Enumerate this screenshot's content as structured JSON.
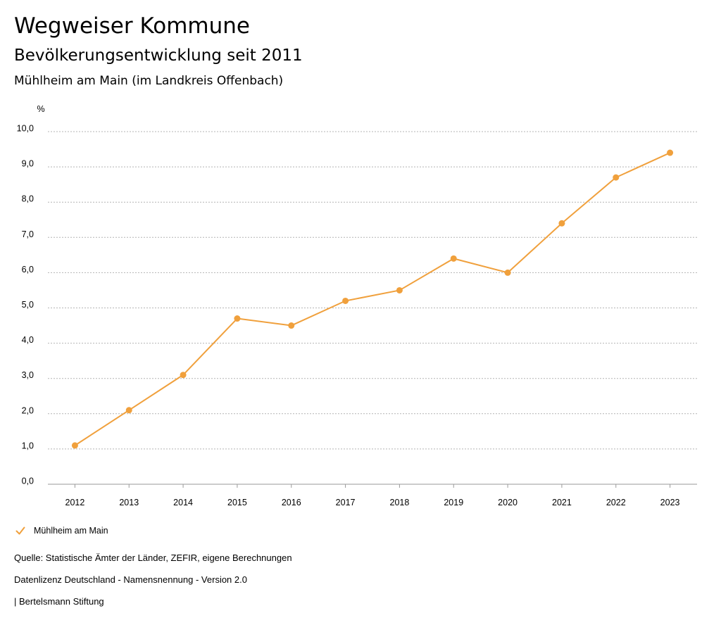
{
  "header": {
    "title": "Wegweiser Kommune",
    "subtitle": "Bevölkerungsentwicklung seit 2011",
    "region": "Mühlheim am Main (im Landkreis Offenbach)"
  },
  "legend": {
    "label": "Mühlheim am Main",
    "color": "#f0a03c"
  },
  "footer": {
    "source": "Quelle: Statistische Ämter der Länder, ZEFIR, eigene Berechnungen",
    "license": "Datenlizenz Deutschland - Namensnennung - Version 2.0",
    "brand": "| Bertelsmann Stiftung"
  },
  "chart_data": {
    "type": "line",
    "title": "Bevölkerungsentwicklung seit 2011",
    "ylabel": "%",
    "xlabel": "",
    "ylim": [
      0,
      10
    ],
    "grid": true,
    "legend_placement": "bottom-left",
    "x": [
      "2012",
      "2013",
      "2014",
      "2015",
      "2016",
      "2017",
      "2018",
      "2019",
      "2020",
      "2021",
      "2022",
      "2023"
    ],
    "y_ticks": [
      "0,0",
      "1,0",
      "2,0",
      "3,0",
      "4,0",
      "5,0",
      "6,0",
      "7,0",
      "8,0",
      "9,0",
      "10,0"
    ],
    "series": [
      {
        "name": "Mühlheim am Main",
        "color": "#f0a03c",
        "values": [
          1.1,
          2.1,
          3.1,
          4.7,
          4.5,
          5.2,
          5.5,
          6.4,
          6.0,
          7.4,
          8.7,
          9.4
        ]
      }
    ]
  }
}
